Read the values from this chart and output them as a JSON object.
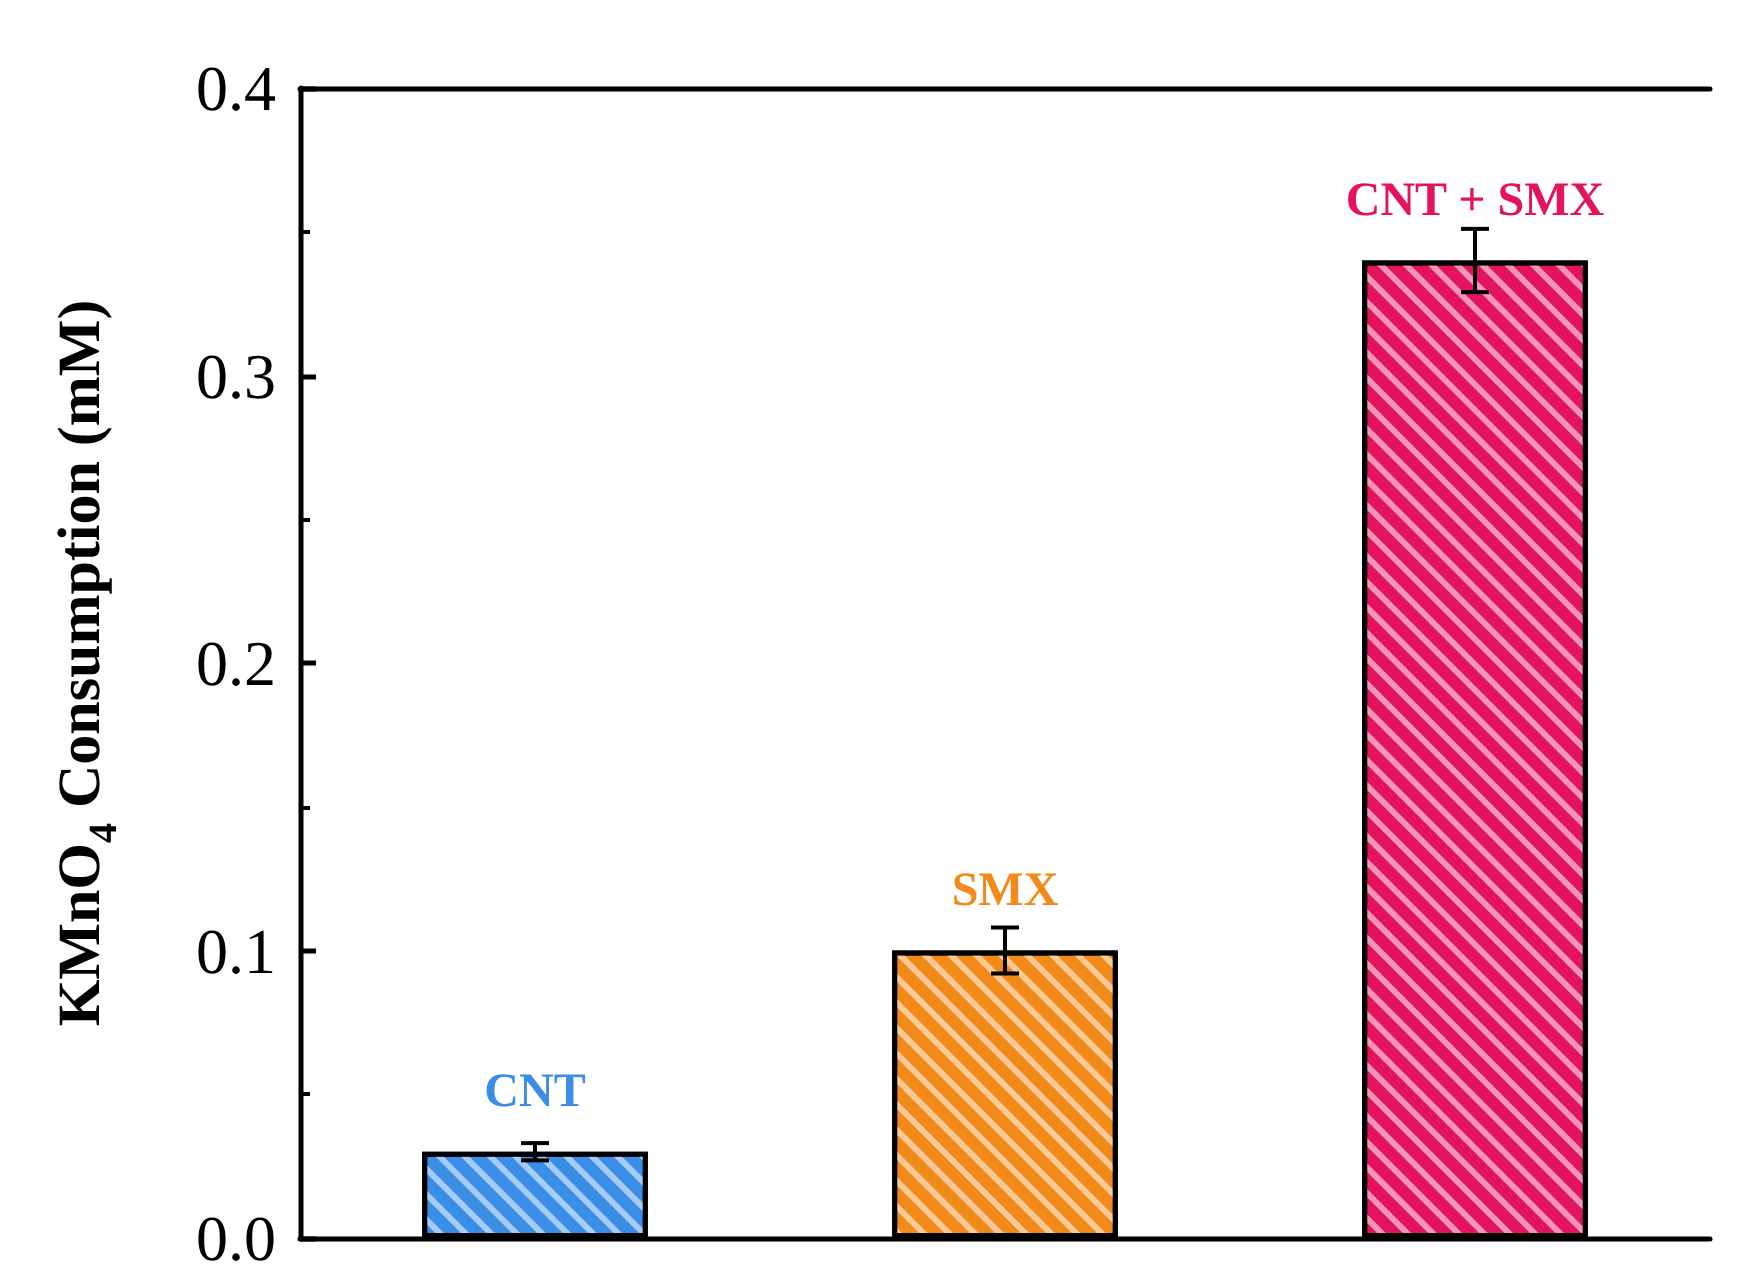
{
  "chart_data": {
    "type": "bar",
    "ylabel": "KMnO$_{4}$ Consumption (mM)",
    "categories": [
      "CNT",
      "SMX",
      "CNT + SMX"
    ],
    "values": [
      0.03,
      0.1,
      0.34
    ],
    "errors": [
      0.003,
      0.008,
      0.011
    ],
    "colors": [
      "#3a8ee6",
      "#f28a1a",
      "#e3135f"
    ],
    "ylim": [
      0,
      0.4
    ],
    "yticks": [
      {
        "value": 0,
        "label": "0.0"
      },
      {
        "value": 0.1,
        "label": "0.1"
      },
      {
        "value": 0.2,
        "label": "0.2"
      },
      {
        "value": 0.3,
        "label": "0.3"
      },
      {
        "value": 0.4,
        "label": "0.4"
      }
    ],
    "tick_labels": "y",
    "grid": false
  }
}
